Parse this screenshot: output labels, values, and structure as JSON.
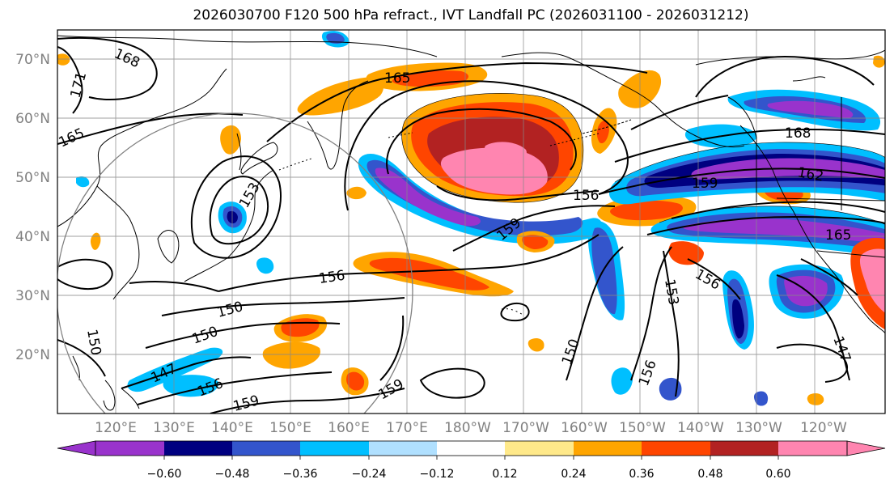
{
  "title": "2026030700 F120 500 hPa refract., IVT Landfall PC (2026031100 - 2026031212)",
  "lat_labels": [
    "70°N",
    "60°N",
    "50°N",
    "40°N",
    "30°N",
    "20°N"
  ],
  "lon_labels": [
    "120°E",
    "130°E",
    "140°E",
    "150°E",
    "160°E",
    "170°E",
    "180°W",
    "170°W",
    "160°W",
    "150°W",
    "140°W",
    "130°W",
    "120°W"
  ],
  "contour_labels": [
    "168",
    "171",
    "165",
    "165",
    "165",
    "168",
    "162",
    "159",
    "156",
    "159",
    "153",
    "156",
    "156",
    "153",
    "150",
    "150",
    "147",
    "156",
    "159",
    "159",
    "150",
    "156",
    "147",
    "150"
  ],
  "colorbar": {
    "ticks": [
      "−0.60",
      "−0.48",
      "−0.36",
      "−0.24",
      "−0.12",
      "0.12",
      "0.24",
      "0.36",
      "0.48",
      "0.60"
    ],
    "colors": [
      "#9933cc",
      "#000080",
      "#3355cc",
      "#00bfff",
      "#b0e0ff",
      "#ffffff",
      "#ffe98a",
      "#ffa500",
      "#ff4500",
      "#b22222",
      "#ff85b0",
      "#ff85b0"
    ]
  },
  "colors": {
    "grid": "#888888",
    "coast": "#000000",
    "contour": "#000000",
    "label": "#808080"
  }
}
